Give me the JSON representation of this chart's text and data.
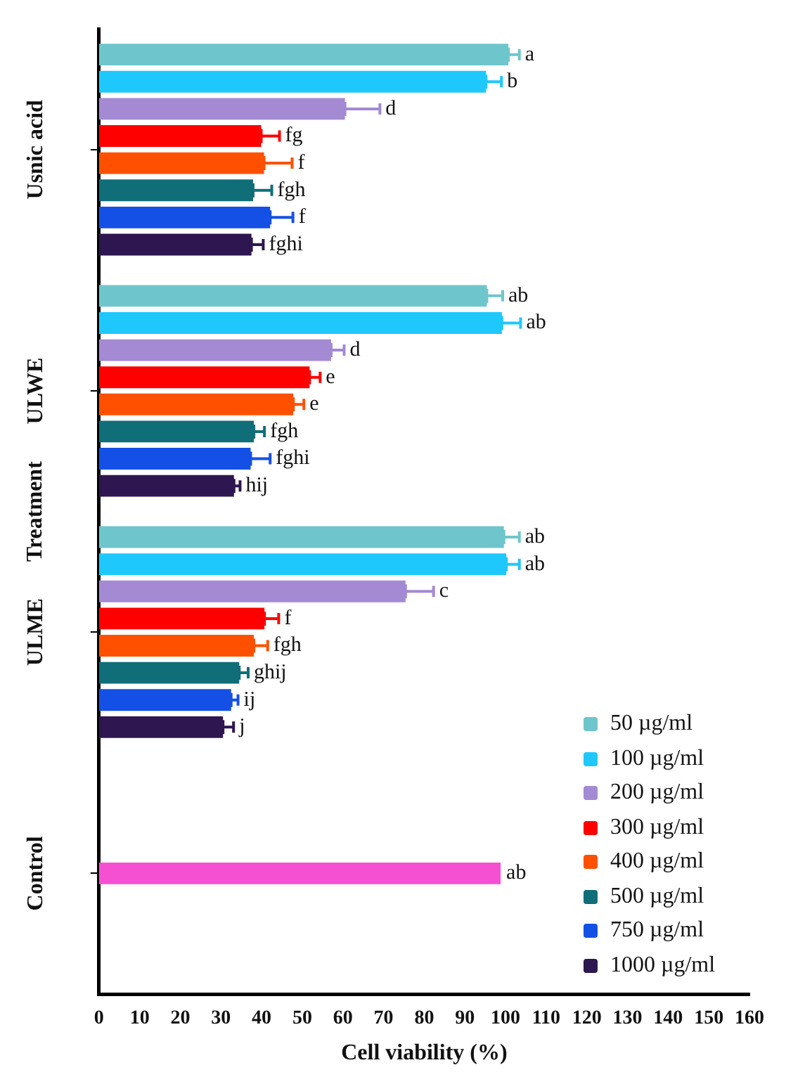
{
  "chart_data": {
    "type": "bar",
    "orientation": "horizontal",
    "xlabel": "Cell viability (%)",
    "ylabel": "Treatment",
    "categories": [
      "Usnic acid",
      "ULWE",
      "ULME",
      "Control"
    ],
    "xlim": [
      0,
      160
    ],
    "xticks": [
      0,
      10,
      20,
      30,
      40,
      50,
      60,
      70,
      80,
      90,
      100,
      110,
      120,
      130,
      140,
      150,
      160
    ],
    "grid": false,
    "legend": "bottom right",
    "series": [
      {
        "name": "50 µg/ml",
        "color": "#6ec6cc",
        "values": [
          100.7,
          95.4,
          99.6,
          null
        ],
        "errors": [
          2.7,
          3.9,
          3.8,
          null
        ],
        "value_labels": [
          "a",
          "ab",
          "ab",
          null
        ]
      },
      {
        "name": "100 µg/ml",
        "color": "#1ec8fc",
        "values": [
          95.2,
          99.1,
          100.2,
          null
        ],
        "errors": [
          3.8,
          4.6,
          3.2,
          null
        ],
        "value_labels": [
          "b",
          "ab",
          "ab",
          null
        ]
      },
      {
        "name": "200 µg/ml",
        "color": "#a38ad2",
        "values": [
          60.5,
          57.1,
          75.4,
          null
        ],
        "errors": [
          8.6,
          3.2,
          6.9,
          null
        ],
        "value_labels": [
          "d",
          "d",
          "c",
          null
        ]
      },
      {
        "name": "300 µg/ml",
        "color": "#ff0000",
        "values": [
          39.9,
          51.8,
          40.7,
          null
        ],
        "errors": [
          4.5,
          2.6,
          3.5,
          null
        ],
        "value_labels": [
          "fg",
          "e",
          "f",
          null
        ]
      },
      {
        "name": "400 µg/ml",
        "color": "#ff5000",
        "values": [
          40.6,
          47.8,
          38.1,
          null
        ],
        "errors": [
          6.9,
          2.6,
          3.4,
          null
        ],
        "value_labels": [
          "f",
          "e",
          "fgh",
          null
        ]
      },
      {
        "name": "500 µg/ml",
        "color": "#106e78",
        "values": [
          37.9,
          38.1,
          34.5,
          null
        ],
        "errors": [
          4.6,
          2.6,
          2.2,
          null
        ],
        "value_labels": [
          "fgh",
          "fgh",
          "ghij",
          null
        ]
      },
      {
        "name": "750 µg/ml",
        "color": "#1450e6",
        "values": [
          42.1,
          37.3,
          32.5,
          null
        ],
        "errors": [
          5.6,
          4.8,
          1.7,
          null
        ],
        "value_labels": [
          "f",
          "fghi",
          "ij",
          null
        ]
      },
      {
        "name": "1000 µg/ml",
        "color": "#2e1650",
        "values": [
          37.5,
          33.2,
          30.5,
          null
        ],
        "errors": [
          2.9,
          1.5,
          2.6,
          null
        ],
        "value_labels": [
          "fghi",
          "hij",
          "j",
          null
        ]
      },
      {
        "color": "#f550d2",
        "values": [
          null,
          null,
          null,
          98.8
        ],
        "value_labels": [
          null,
          null,
          null,
          "ab"
        ]
      }
    ]
  }
}
